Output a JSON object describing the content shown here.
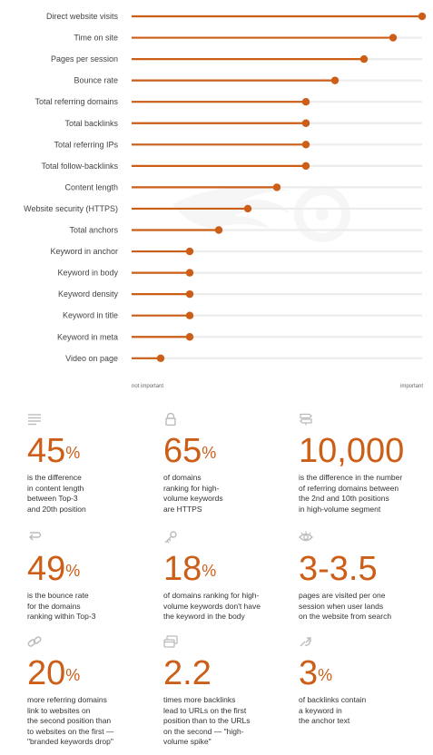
{
  "chart_data": {
    "type": "dot-plot",
    "categories": [
      "Direct website visits",
      "Time on site",
      "Pages per session",
      "Bounce rate",
      "Total referring domains",
      "Total backlinks",
      "Total referring IPs",
      "Total follow-backlinks",
      "Content length",
      "Website security (HTTPS)",
      "Total anchors",
      "Keyword in anchor",
      "Keyword in body",
      "Keyword density",
      "Keyword in title",
      "Keyword in meta",
      "Video on page"
    ],
    "values": [
      1.0,
      0.9,
      0.8,
      0.7,
      0.6,
      0.6,
      0.6,
      0.6,
      0.5,
      0.4,
      0.3,
      0.2,
      0.2,
      0.2,
      0.2,
      0.2,
      0.1
    ],
    "xlim": [
      0,
      1
    ],
    "x_min_label": "not important",
    "x_max_label": "important",
    "grid": false,
    "legend": "none",
    "colors": {
      "accent": "#cc5e18",
      "track": "#ececec",
      "label": "#444444"
    }
  },
  "stats": [
    {
      "icon": "text-lines-icon",
      "value": "45",
      "unit": "%",
      "description": "is the difference\nin content length\nbetween Top-3\nand 20th position"
    },
    {
      "icon": "lock-icon",
      "value": "65",
      "unit": "%",
      "description": "of domains\nranking for high-\nvolume keywords\nare HTTPS"
    },
    {
      "icon": "signpost-icon",
      "value": "10,000",
      "unit": "",
      "description": "is the difference in the number\nof referring domains between\nthe 2nd and 10th positions\nin high-volume segment"
    },
    {
      "icon": "return-arrow-icon",
      "value": "49",
      "unit": "%",
      "description": "is the bounce rate\nfor the domains\nranking within Top-3"
    },
    {
      "icon": "key-icon",
      "value": "18",
      "unit": "%",
      "description": "of domains ranking for high-\nvolume keywords don't have\nthe keyword in the body"
    },
    {
      "icon": "eye-icon",
      "value": "3-3.5",
      "unit": "",
      "description": "pages are visited per one\nsession when user lands\non the website from search"
    },
    {
      "icon": "link-icon",
      "value": "20",
      "unit": "%",
      "description": "more referring domains\nlink to websites on\nthe second position than\nto websites on the first —\n\"branded keywords drop\""
    },
    {
      "icon": "windows-icon",
      "value": "2.2",
      "unit": "",
      "description": "times more backlinks\nlead to URLs on the first\nposition than to the URLs\non the second — \"high-\nvolume spike\""
    },
    {
      "icon": "anchor-link-icon",
      "value": "3",
      "unit": "%",
      "description": "of backlinks contain\na keyword in\nthe anchor text"
    }
  ]
}
